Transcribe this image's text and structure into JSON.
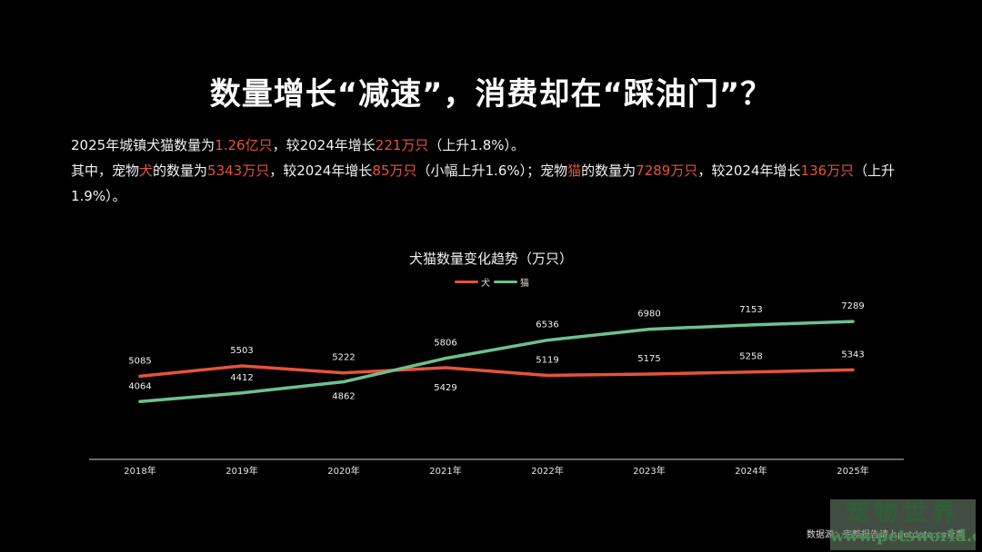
{
  "slide": {
    "title": "数量增长“减速”，消费却在“踩油门”？",
    "summary": {
      "line1": [
        {
          "text": "2025年城镇犬猫数量为",
          "hl": false
        },
        {
          "text": "1.26亿只",
          "hl": true
        },
        {
          "text": "，较2024年增长",
          "hl": false
        },
        {
          "text": "221万只",
          "hl": true
        },
        {
          "text": "（上升1.8%）。",
          "hl": false
        }
      ],
      "line2": [
        {
          "text": "其中，宠物",
          "hl": false
        },
        {
          "text": "犬",
          "hl": true
        },
        {
          "text": "的数量为",
          "hl": false
        },
        {
          "text": "5343万只",
          "hl": true
        },
        {
          "text": "，较2024年增长",
          "hl": false
        },
        {
          "text": "85万只",
          "hl": true
        },
        {
          "text": "（小幅上升1.6%）；宠物",
          "hl": false
        },
        {
          "text": "猫",
          "hl": true
        },
        {
          "text": "的数量为",
          "hl": false
        },
        {
          "text": "7289万只",
          "hl": true
        },
        {
          "text": "，较2024年增长",
          "hl": false
        },
        {
          "text": "136万只",
          "hl": true
        },
        {
          "text": "（上升1.9%）。",
          "hl": false
        }
      ]
    },
    "footer": "数据源：完整报告请上petdata.cn查看",
    "watermark": {
      "cn": "宠物世界",
      "url": "www.petsworld.cn"
    }
  },
  "colors": {
    "dog": "#e5533a",
    "cat": "#6fc08f",
    "axis": "#8a8a8a",
    "highlight": "#e5533a"
  },
  "chart_data": {
    "type": "line",
    "title": "犬猫数量变化趋势（万只）",
    "xlabel": "",
    "ylabel": "",
    "categories": [
      "2018年",
      "2019年",
      "2020年",
      "2021年",
      "2022年",
      "2023年",
      "2024年",
      "2025年"
    ],
    "series": [
      {
        "name": "犬",
        "color": "#e5533a",
        "values": [
          5085,
          5503,
          5222,
          5429,
          5119,
          5175,
          5258,
          5343
        ]
      },
      {
        "name": "猫",
        "color": "#6fc08f",
        "values": [
          4064,
          4412,
          4862,
          5806,
          6536,
          6980,
          7153,
          7289
        ]
      }
    ],
    "legend_position": "top",
    "grid": false,
    "data_labels": true
  }
}
